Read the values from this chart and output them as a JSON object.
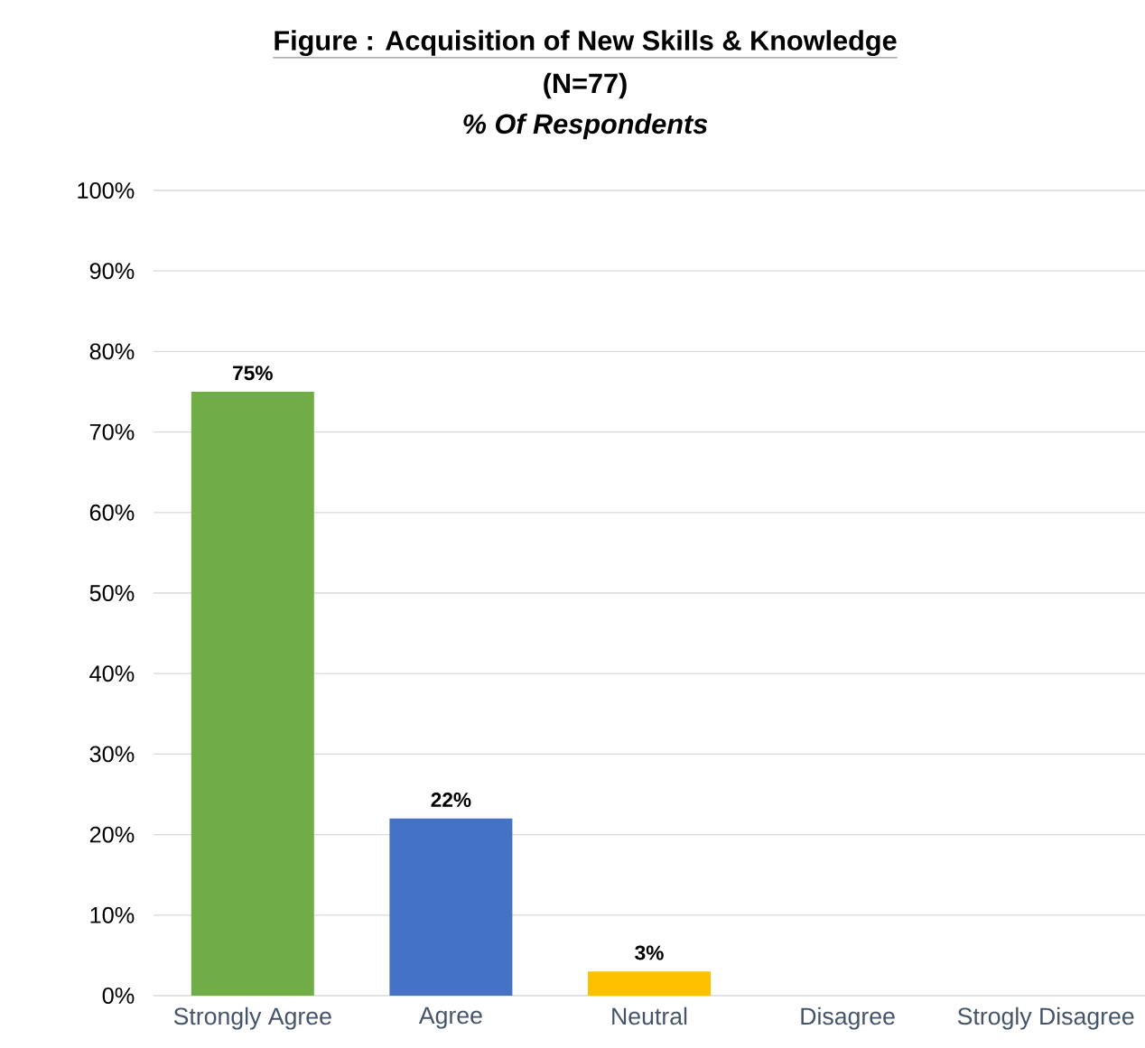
{
  "chart_data": {
    "type": "bar",
    "title": "Figure  : Acquisition of New Skills & Knowledge",
    "subtitle": "(N=77)",
    "ylabel": "% Of Respondents",
    "categories": [
      "Strongly Agree",
      "Agree",
      "Neutral",
      "Disagree",
      "Strogly Disagree"
    ],
    "values": [
      75,
      22,
      3,
      0,
      0
    ],
    "value_labels": [
      "75%",
      "22%",
      "3%",
      null,
      null
    ],
    "colors": [
      "#70ad47",
      "#4472c4",
      "#ffc000",
      "#a5a5a5",
      "#5b9bd5"
    ],
    "ylim": [
      0,
      100
    ],
    "yticks": [
      {
        "value": 0,
        "label": "0%"
      },
      {
        "value": 10,
        "label": "10%"
      },
      {
        "value": 20,
        "label": "20%"
      },
      {
        "value": 30,
        "label": "30%"
      },
      {
        "value": 40,
        "label": "40%"
      },
      {
        "value": 50,
        "label": "50%"
      },
      {
        "value": 60,
        "label": "60%"
      },
      {
        "value": 70,
        "label": "70%"
      },
      {
        "value": 80,
        "label": "80%"
      },
      {
        "value": 90,
        "label": "90%"
      },
      {
        "value": 100,
        "label": "100%"
      }
    ],
    "grid": "y"
  }
}
